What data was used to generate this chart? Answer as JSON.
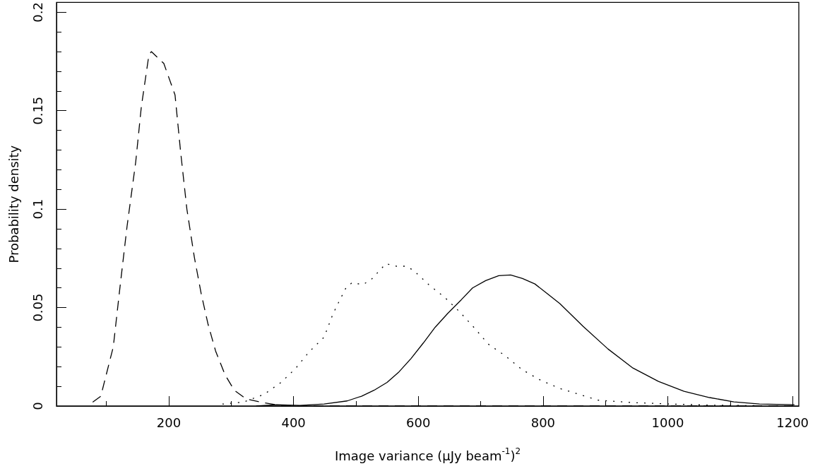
{
  "chart_data": {
    "type": "line",
    "xlabel": "Image variance (μJy beam$^{-1}$)$^{2}$",
    "ylabel": "Probability density",
    "xlim": [
      20,
      1210
    ],
    "ylim": [
      0,
      0.205
    ],
    "xticks": [
      200,
      400,
      600,
      800,
      1000,
      1200
    ],
    "yticks": [
      0,
      0.05,
      0.1,
      0.15,
      0.2
    ],
    "grid": false,
    "legend": false,
    "marker": "none",
    "series": [
      {
        "color": "#000000",
        "line_style": "dashed",
        "x": [
          78,
          91,
          111,
          122,
          133,
          147,
          156,
          168,
          172,
          192,
          210,
          219,
          229,
          241,
          252,
          263,
          275,
          290,
          305,
          324,
          347,
          384,
          600,
          900,
          1200
        ],
        "values": [
          0.002,
          0.005,
          0.03,
          0.061,
          0.091,
          0.124,
          0.152,
          0.178,
          0.18,
          0.174,
          0.158,
          0.129,
          0.1,
          0.0755,
          0.057,
          0.0415,
          0.028,
          0.016,
          0.008,
          0.0036,
          0.002,
          0,
          0,
          0,
          0
        ]
      },
      {
        "color": "#000000",
        "line_style": "dotted",
        "x": [
          286,
          320,
          353,
          380,
          403,
          425,
          449,
          461,
          468,
          476,
          484,
          494,
          511,
          525,
          548,
          565,
          581,
          593,
          617,
          643,
          667,
          689,
          712,
          740,
          766,
          793,
          826,
          857,
          888,
          941,
          1006,
          1075,
          1200
        ],
        "values": [
          0.001,
          0.002,
          0.006,
          0.012,
          0.019,
          0.0275,
          0.035,
          0.045,
          0.05,
          0.055,
          0.06,
          0.0627,
          0.0616,
          0.0644,
          0.0723,
          0.071,
          0.071,
          0.0687,
          0.0616,
          0.055,
          0.0476,
          0.04,
          0.0315,
          0.0254,
          0.0186,
          0.0136,
          0.009,
          0.006,
          0.003,
          0.0018,
          0.001,
          0.0004,
          0
        ]
      },
      {
        "color": "#000000",
        "line_style": "solid",
        "x": [
          340,
          373,
          410,
          449,
          486,
          509,
          529,
          550,
          568,
          588,
          608,
          627,
          647,
          669,
          687,
          708,
          729,
          748,
          767,
          787,
          807,
          827,
          864,
          904,
          944,
          985,
          1026,
          1067,
          1106,
          1147,
          1203
        ],
        "values": [
          0,
          0.0007,
          0.0003,
          0.001,
          0.0026,
          0.005,
          0.008,
          0.012,
          0.017,
          0.024,
          0.032,
          0.04,
          0.047,
          0.054,
          0.06,
          0.0637,
          0.0662,
          0.0666,
          0.0648,
          0.062,
          0.057,
          0.052,
          0.0405,
          0.029,
          0.0193,
          0.0125,
          0.0075,
          0.0043,
          0.0021,
          0.001,
          0.0007
        ]
      }
    ]
  }
}
